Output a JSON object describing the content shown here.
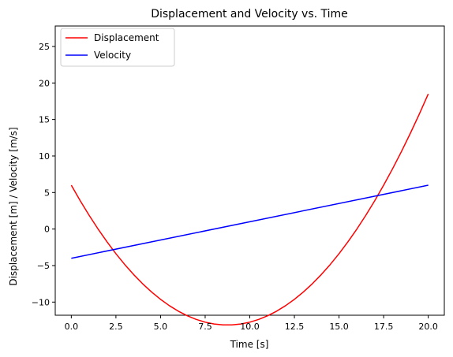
{
  "chart_data": {
    "type": "line",
    "title": "Displacement and Velocity vs. Time",
    "xlabel": "Time [s]",
    "ylabel": "Displacement [m] / Velocity [m/s]",
    "xlim": [
      -0.9,
      20.9
    ],
    "ylim": [
      -11.8,
      27.8
    ],
    "xticks": [
      0.0,
      2.5,
      5.0,
      7.5,
      10.0,
      12.5,
      15.0,
      17.5,
      20.0
    ],
    "xtick_labels": [
      "0.0",
      "2.5",
      "5.0",
      "7.5",
      "10.0",
      "12.5",
      "15.0",
      "17.5",
      "20.0"
    ],
    "yticks": [
      -10,
      -5,
      0,
      5,
      10,
      15,
      20,
      25
    ],
    "ytick_labels": [
      "−10",
      "−5",
      "0",
      "5",
      "10",
      "15",
      "20",
      "25"
    ],
    "grid": false,
    "legend_position": "top-left",
    "series": [
      {
        "name": "Displacement",
        "color": "#ff0000",
        "x": [
          0,
          0.5,
          1,
          1.5,
          2,
          2.5,
          3,
          3.5,
          4,
          4.5,
          5,
          5.5,
          6,
          6.5,
          7,
          7.5,
          8,
          8.5,
          9,
          9.5,
          10,
          10.5,
          11,
          11.5,
          12,
          12.5,
          13,
          13.5,
          14,
          14.5,
          15,
          15.5,
          16,
          16.5,
          17,
          17.5,
          18,
          18.5,
          19,
          19.5,
          20
        ],
        "y": [
          6.0,
          3.875,
          1.875,
          0.0,
          -1.75,
          -3.375,
          -4.875,
          -6.25,
          -7.5,
          -8.625,
          -9.625,
          -10.5,
          -11.25,
          -11.875,
          -12.375,
          -12.75,
          -13.0,
          -13.125,
          -13.125,
          -13.0,
          -12.75,
          -12.375,
          -11.875,
          -11.25,
          -10.5,
          -9.625,
          -8.625,
          -7.5,
          -6.25,
          -4.875,
          -3.375,
          -1.75,
          0.0,
          1.875,
          3.875,
          6.0,
          8.25,
          10.625,
          13.125,
          15.75,
          18.5
        ]
      },
      {
        "name": "Velocity",
        "color": "#0000ff",
        "x": [
          0,
          20
        ],
        "y": [
          -4,
          6
        ]
      }
    ]
  }
}
